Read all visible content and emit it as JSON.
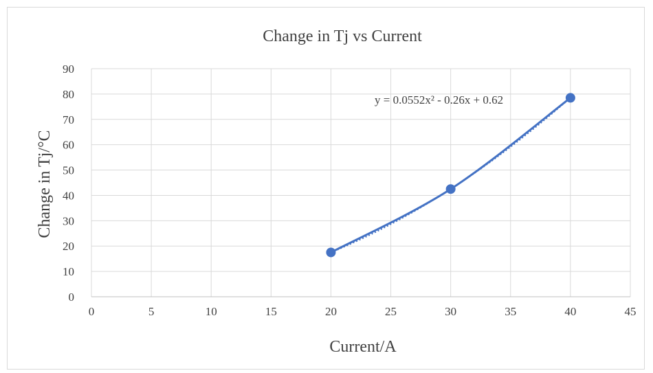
{
  "chart_data": {
    "type": "scatter",
    "title": "Change in Tj vs Current",
    "xlabel": "Current/A",
    "ylabel": "Change in Tj/°C",
    "xlim": [
      0,
      45
    ],
    "ylim": [
      0,
      90
    ],
    "x_ticks": [
      0,
      5,
      10,
      15,
      20,
      25,
      30,
      35,
      40,
      45
    ],
    "y_ticks": [
      0,
      10,
      20,
      30,
      40,
      50,
      60,
      70,
      80,
      90
    ],
    "grid": true,
    "series": [
      {
        "x": [
          20,
          30,
          40
        ],
        "y": [
          17.5,
          42.5,
          78.5
        ],
        "color": "#4472c4",
        "line": "smooth",
        "markers": true
      }
    ],
    "trendline": {
      "type": "polynomial",
      "order": 2,
      "coefficients": [
        0.0552,
        -0.26,
        0.62
      ],
      "equation": "y = 0.0552x² - 0.26x + 0.62",
      "style": "dotted",
      "color": "#4472c4"
    }
  }
}
